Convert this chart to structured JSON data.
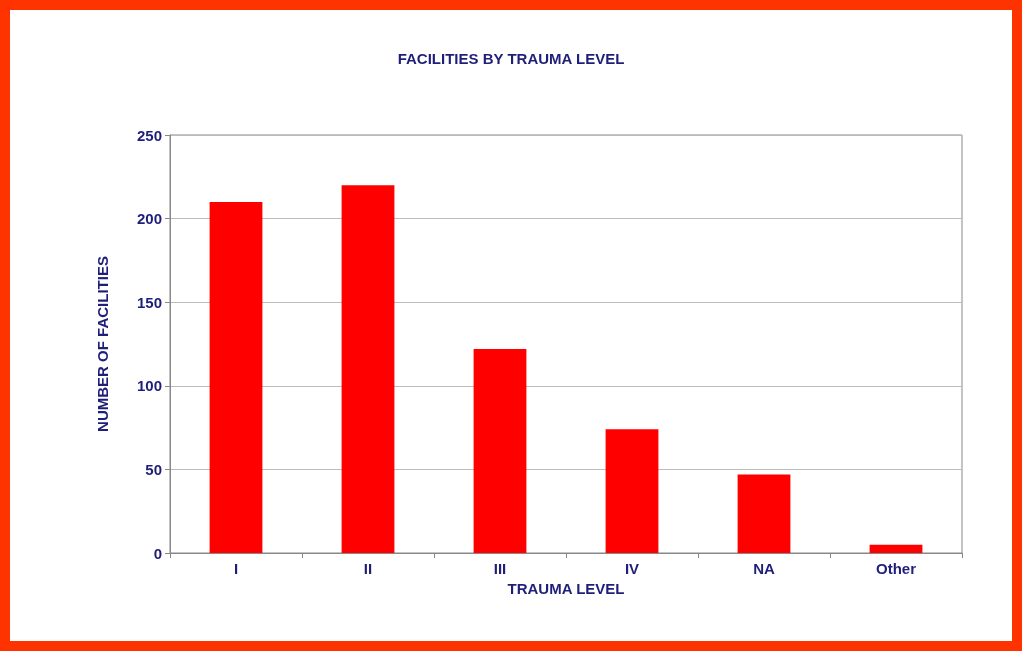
{
  "chart_data": {
    "type": "bar",
    "title": "FACILITIES BY TRAUMA LEVEL",
    "xlabel": "TRAUMA LEVEL",
    "ylabel": "NUMBER OF FACILITIES",
    "categories": [
      "I",
      "II",
      "III",
      "IV",
      "NA",
      "Other"
    ],
    "values": [
      210,
      220,
      122,
      74,
      47,
      5
    ],
    "color": "#ff0000",
    "ylim": [
      0,
      250
    ],
    "yticks": [
      0,
      50,
      100,
      150,
      200,
      250
    ],
    "grid": "y"
  }
}
